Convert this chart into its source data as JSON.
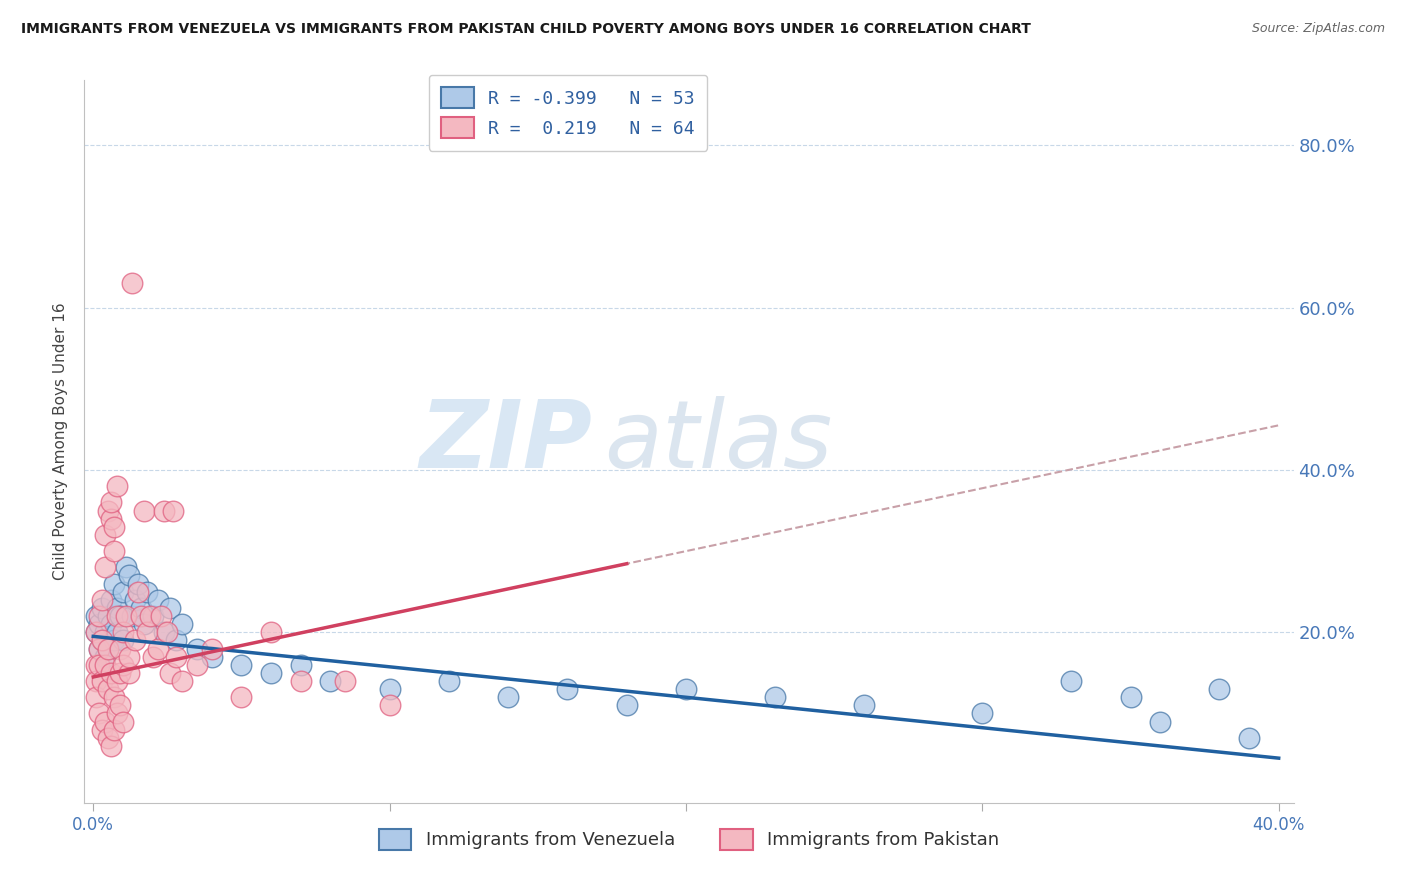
{
  "title": "IMMIGRANTS FROM VENEZUELA VS IMMIGRANTS FROM PAKISTAN CHILD POVERTY AMONG BOYS UNDER 16 CORRELATION CHART",
  "source": "Source: ZipAtlas.com",
  "ylabel": "Child Poverty Among Boys Under 16",
  "xlabel_venezuela": "Immigrants from Venezuela",
  "xlabel_pakistan": "Immigrants from Pakistan",
  "xlim": [
    -0.003,
    0.405
  ],
  "ylim": [
    -0.01,
    0.88
  ],
  "yticks": [
    0.0,
    0.2,
    0.4,
    0.6,
    0.8
  ],
  "xticks": [
    0.0,
    0.4
  ],
  "R_venezuela": -0.399,
  "N_venezuela": 53,
  "R_pakistan": 0.219,
  "N_pakistan": 64,
  "color_venezuela": "#aec9e8",
  "color_pakistan": "#f4b8c1",
  "edge_venezuela": "#4878a8",
  "edge_pakistan": "#e06080",
  "trendline_venezuela_color": "#2060a0",
  "trendline_pakistan_color": "#d04060",
  "trendline_pakistan_dash_color": "#c8a0a8",
  "watermark_zip_color": "#c8ddf0",
  "watermark_atlas_color": "#c8ddf0",
  "background_color": "#ffffff",
  "venezuela_trendline": [
    [
      0.0,
      0.195
    ],
    [
      0.4,
      0.045
    ]
  ],
  "pakistan_trendline": [
    [
      0.0,
      0.145
    ],
    [
      0.4,
      0.455
    ]
  ],
  "venezuela_scatter": [
    [
      0.001,
      0.2
    ],
    [
      0.001,
      0.22
    ],
    [
      0.002,
      0.18
    ],
    [
      0.002,
      0.21
    ],
    [
      0.003,
      0.19
    ],
    [
      0.003,
      0.23
    ],
    [
      0.004,
      0.2
    ],
    [
      0.004,
      0.17
    ],
    [
      0.005,
      0.22
    ],
    [
      0.005,
      0.18
    ],
    [
      0.006,
      0.21
    ],
    [
      0.006,
      0.24
    ],
    [
      0.007,
      0.19
    ],
    [
      0.007,
      0.26
    ],
    [
      0.008,
      0.23
    ],
    [
      0.008,
      0.2
    ],
    [
      0.009,
      0.22
    ],
    [
      0.01,
      0.25
    ],
    [
      0.01,
      0.19
    ],
    [
      0.011,
      0.28
    ],
    [
      0.012,
      0.27
    ],
    [
      0.013,
      0.22
    ],
    [
      0.014,
      0.24
    ],
    [
      0.015,
      0.26
    ],
    [
      0.016,
      0.23
    ],
    [
      0.017,
      0.21
    ],
    [
      0.018,
      0.25
    ],
    [
      0.02,
      0.22
    ],
    [
      0.022,
      0.24
    ],
    [
      0.024,
      0.2
    ],
    [
      0.026,
      0.23
    ],
    [
      0.028,
      0.19
    ],
    [
      0.03,
      0.21
    ],
    [
      0.035,
      0.18
    ],
    [
      0.04,
      0.17
    ],
    [
      0.05,
      0.16
    ],
    [
      0.06,
      0.15
    ],
    [
      0.07,
      0.16
    ],
    [
      0.08,
      0.14
    ],
    [
      0.1,
      0.13
    ],
    [
      0.12,
      0.14
    ],
    [
      0.14,
      0.12
    ],
    [
      0.16,
      0.13
    ],
    [
      0.18,
      0.11
    ],
    [
      0.2,
      0.13
    ],
    [
      0.23,
      0.12
    ],
    [
      0.26,
      0.11
    ],
    [
      0.3,
      0.1
    ],
    [
      0.33,
      0.14
    ],
    [
      0.35,
      0.12
    ],
    [
      0.36,
      0.09
    ],
    [
      0.38,
      0.13
    ],
    [
      0.39,
      0.07
    ]
  ],
  "pakistan_scatter": [
    [
      0.001,
      0.16
    ],
    [
      0.001,
      0.2
    ],
    [
      0.001,
      0.14
    ],
    [
      0.001,
      0.12
    ],
    [
      0.002,
      0.18
    ],
    [
      0.002,
      0.22
    ],
    [
      0.002,
      0.16
    ],
    [
      0.002,
      0.1
    ],
    [
      0.003,
      0.19
    ],
    [
      0.003,
      0.24
    ],
    [
      0.003,
      0.14
    ],
    [
      0.003,
      0.08
    ],
    [
      0.004,
      0.28
    ],
    [
      0.004,
      0.32
    ],
    [
      0.004,
      0.16
    ],
    [
      0.004,
      0.09
    ],
    [
      0.005,
      0.18
    ],
    [
      0.005,
      0.35
    ],
    [
      0.005,
      0.13
    ],
    [
      0.005,
      0.07
    ],
    [
      0.006,
      0.34
    ],
    [
      0.006,
      0.36
    ],
    [
      0.006,
      0.15
    ],
    [
      0.006,
      0.06
    ],
    [
      0.007,
      0.3
    ],
    [
      0.007,
      0.33
    ],
    [
      0.007,
      0.12
    ],
    [
      0.007,
      0.08
    ],
    [
      0.008,
      0.38
    ],
    [
      0.008,
      0.22
    ],
    [
      0.008,
      0.14
    ],
    [
      0.008,
      0.1
    ],
    [
      0.009,
      0.15
    ],
    [
      0.009,
      0.18
    ],
    [
      0.009,
      0.11
    ],
    [
      0.01,
      0.2
    ],
    [
      0.01,
      0.16
    ],
    [
      0.01,
      0.09
    ],
    [
      0.011,
      0.22
    ],
    [
      0.012,
      0.15
    ],
    [
      0.012,
      0.17
    ],
    [
      0.013,
      0.63
    ],
    [
      0.014,
      0.19
    ],
    [
      0.015,
      0.25
    ],
    [
      0.016,
      0.22
    ],
    [
      0.017,
      0.35
    ],
    [
      0.018,
      0.2
    ],
    [
      0.019,
      0.22
    ],
    [
      0.02,
      0.17
    ],
    [
      0.022,
      0.18
    ],
    [
      0.023,
      0.22
    ],
    [
      0.024,
      0.35
    ],
    [
      0.025,
      0.2
    ],
    [
      0.026,
      0.15
    ],
    [
      0.027,
      0.35
    ],
    [
      0.028,
      0.17
    ],
    [
      0.03,
      0.14
    ],
    [
      0.035,
      0.16
    ],
    [
      0.04,
      0.18
    ],
    [
      0.05,
      0.12
    ],
    [
      0.06,
      0.2
    ],
    [
      0.07,
      0.14
    ],
    [
      0.085,
      0.14
    ],
    [
      0.1,
      0.11
    ]
  ]
}
